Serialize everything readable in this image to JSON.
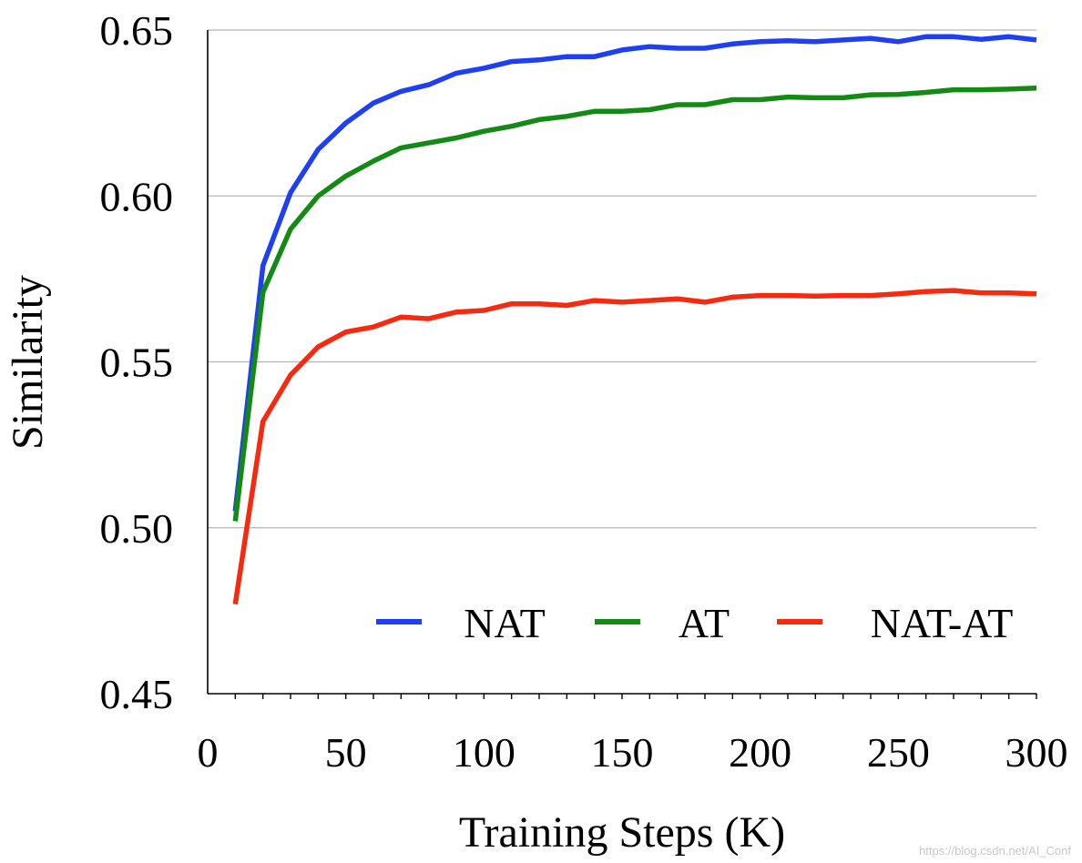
{
  "chart_data": {
    "type": "line",
    "xlabel": "Training Steps (K)",
    "ylabel": "Similarity",
    "xlim": [
      0,
      300
    ],
    "ylim": [
      0.45,
      0.65
    ],
    "xticks": [
      0,
      50,
      100,
      150,
      200,
      250,
      300
    ],
    "xtick_labels": [
      "0",
      "50",
      "100",
      "150",
      "200",
      "250",
      "300"
    ],
    "yticks": [
      0.45,
      0.5,
      0.55,
      0.6,
      0.65
    ],
    "ytick_labels": [
      "0.45",
      "0.50",
      "0.55",
      "0.60",
      "0.65"
    ],
    "grid": "horizontal",
    "legend_position": "bottom-right",
    "x": [
      10,
      20,
      30,
      40,
      50,
      60,
      70,
      80,
      90,
      100,
      110,
      120,
      130,
      140,
      150,
      160,
      170,
      180,
      190,
      200,
      210,
      220,
      230,
      240,
      250,
      260,
      270,
      280,
      290,
      300
    ],
    "series": [
      {
        "name": "NAT",
        "color": "#1f3ff2",
        "values": [
          0.505,
          0.579,
          0.601,
          0.614,
          0.622,
          0.628,
          0.6315,
          0.6335,
          0.637,
          0.6385,
          0.6405,
          0.641,
          0.642,
          0.642,
          0.644,
          0.645,
          0.6445,
          0.6445,
          0.6458,
          0.6465,
          0.6468,
          0.6465,
          0.647,
          0.6475,
          0.6465,
          0.648,
          0.648,
          0.6472,
          0.648,
          0.647
        ]
      },
      {
        "name": "AT",
        "color": "#138a13",
        "values": [
          0.502,
          0.571,
          0.59,
          0.6,
          0.606,
          0.6105,
          0.6145,
          0.616,
          0.6175,
          0.6195,
          0.621,
          0.623,
          0.624,
          0.6255,
          0.6255,
          0.626,
          0.6275,
          0.6275,
          0.629,
          0.629,
          0.6298,
          0.6296,
          0.6296,
          0.6305,
          0.6306,
          0.6312,
          0.632,
          0.632,
          0.6322,
          0.6325
        ]
      },
      {
        "name": "NAT-AT",
        "color": "#f52a0f",
        "values": [
          0.477,
          0.532,
          0.546,
          0.5545,
          0.559,
          0.5605,
          0.5635,
          0.563,
          0.565,
          0.5655,
          0.5675,
          0.5675,
          0.567,
          0.5685,
          0.568,
          0.5685,
          0.569,
          0.568,
          0.5695,
          0.57,
          0.57,
          0.5698,
          0.57,
          0.57,
          0.5705,
          0.5712,
          0.5715,
          0.5708,
          0.5708,
          0.5705
        ]
      }
    ]
  },
  "watermark": "https://blog.csdn.net/AI_Conf"
}
